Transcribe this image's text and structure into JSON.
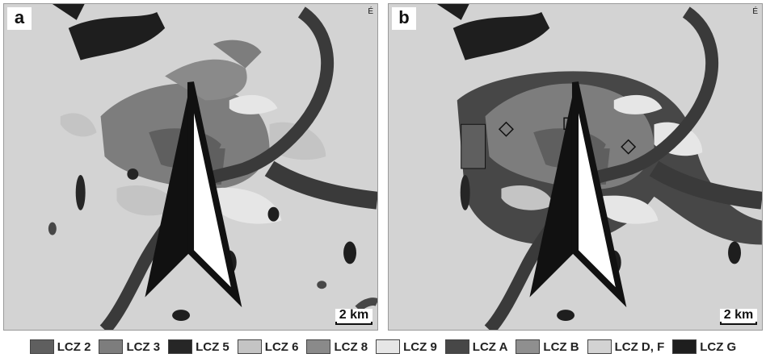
{
  "panels": [
    {
      "label": "a",
      "scale_text": "2 km",
      "north": "É"
    },
    {
      "label": "b",
      "scale_text": "2 km",
      "north": "É"
    }
  ],
  "legend": [
    {
      "label": "LCZ 2",
      "color": "#5f5f5f"
    },
    {
      "label": "LCZ 3",
      "color": "#7d7d7d"
    },
    {
      "label": "LCZ 5",
      "color": "#262626"
    },
    {
      "label": "LCZ 6",
      "color": "#c4c4c4"
    },
    {
      "label": "LCZ 8",
      "color": "#8a8a8a"
    },
    {
      "label": "LCZ 9",
      "color": "#e6e6e6"
    },
    {
      "label": "LCZ A",
      "color": "#474747"
    },
    {
      "label": "LCZ B",
      "color": "#8f8f8f"
    },
    {
      "label": "LCZ D, F",
      "color": "#d3d3d3"
    },
    {
      "label": "LCZ G",
      "color": "#1e1e1e"
    }
  ],
  "colors": {
    "background": "#d3d3d3",
    "river": "#3a3a3a",
    "forest_a": "#474747"
  }
}
